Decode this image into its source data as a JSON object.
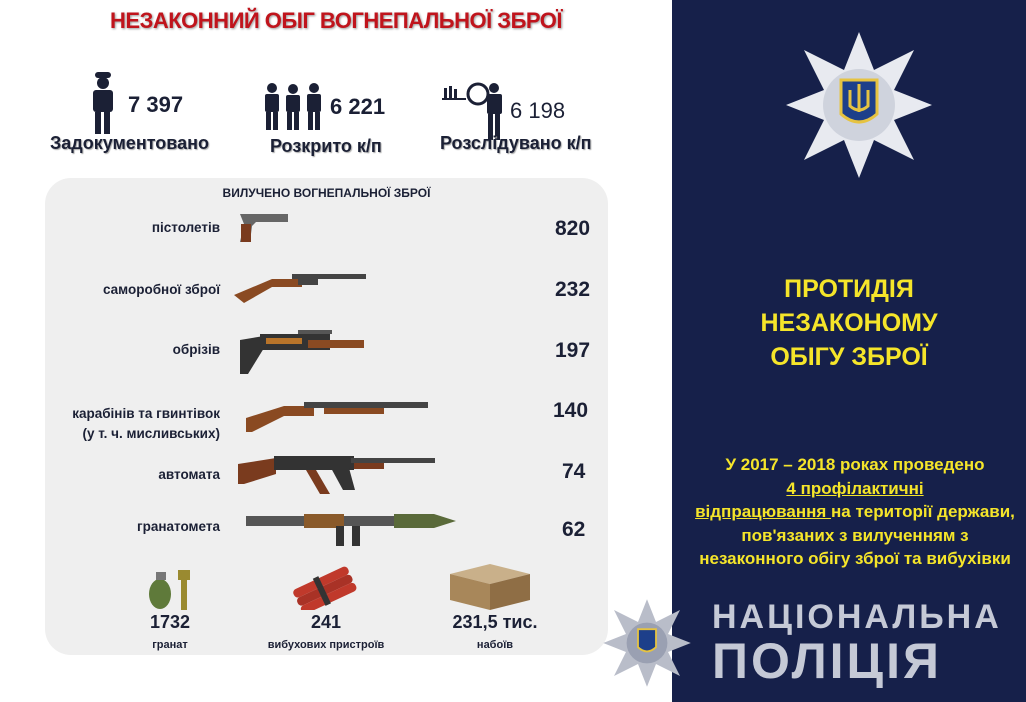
{
  "title": "НЕЗАКОННИЙ ОБІГ ВОГНЕПАЛЬНОЇ ЗБРОЇ",
  "stats": [
    {
      "icon": "police-officer-icon",
      "value": "7 397",
      "label": "Задокументовано"
    },
    {
      "icon": "police-arrest-icon",
      "value": "6 221",
      "label": "Розкрито к/п"
    },
    {
      "icon": "police-investigation-icon",
      "value": "6 198",
      "label": "Розслідувано к/п"
    }
  ],
  "seized": {
    "title": "ВИЛУЧЕНО ВОГНЕПАЛЬНОЇ ЗБРОЇ",
    "items": [
      {
        "label": "пістолетів",
        "value": "820",
        "icon": "pistol-icon"
      },
      {
        "label": "саморобної зброї",
        "value": "232",
        "icon": "homemade-rifle-icon"
      },
      {
        "label": "обрізів",
        "value": "197",
        "icon": "sawed-off-shotgun-icon"
      },
      {
        "label": "карабінів та гвинтівок",
        "label2": "(у т. ч. мисливських)",
        "value": "140",
        "icon": "rifle-icon"
      },
      {
        "label": "автомата",
        "value": "74",
        "icon": "assault-rifle-icon"
      },
      {
        "label": "гранатомета",
        "value": "62",
        "icon": "grenade-launcher-icon"
      }
    ],
    "bottom": [
      {
        "value": "1732",
        "label": "гранат",
        "icon": "grenade-icon"
      },
      {
        "value": "241",
        "label": "вибухових пристроїв",
        "icon": "dynamite-icon"
      },
      {
        "value": "231,5 тис.",
        "label": "набоїв",
        "icon": "ammo-box-icon"
      }
    ]
  },
  "right": {
    "heading": [
      "ПРОТИДІЯ",
      "НЕЗАКОНОМУ",
      "ОБІГУ ЗБРОЇ"
    ],
    "text_1": "У 2017 – 2018 роках проведено",
    "text_underlined_1": "4 профілактичні",
    "text_underlined_2": "відпрацювання ",
    "text_2": "на території держави, пов'язаних з вилученням з незаконного обігу зброї та вибухівки",
    "logo_line1": "НАЦІОНАЛЬНА",
    "logo_line2": "ПОЛІЦІЯ"
  },
  "colors": {
    "title_red": "#c0141c",
    "navy": "#16204a",
    "yellow": "#f5e52a",
    "panel_gray": "#efefef"
  }
}
